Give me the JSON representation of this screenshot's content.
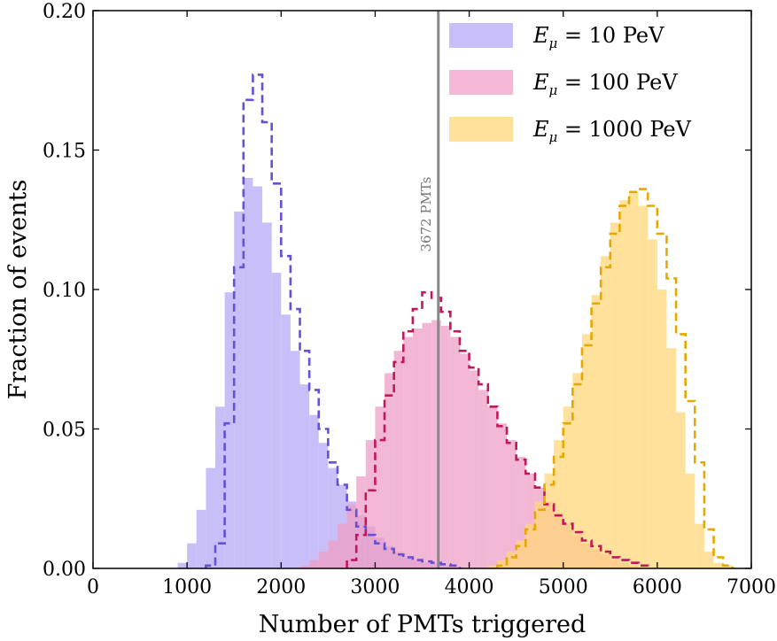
{
  "chart_data": {
    "type": "histogram",
    "xlabel": "Number of PMTs triggered",
    "ylabel": "Fraction of events",
    "xlim": [
      0,
      7000
    ],
    "ylim": [
      0,
      0.2
    ],
    "xticks": [
      "0",
      "1000",
      "2000",
      "3000",
      "4000",
      "5000",
      "6000",
      "7000"
    ],
    "yticks": [
      "0.00",
      "0.05",
      "0.10",
      "0.15",
      "0.20"
    ],
    "bin_width": 100,
    "legend_position": "top-right",
    "reference_line": {
      "x": 3672,
      "label": "3672 PMTs",
      "color": "#888888"
    },
    "series": [
      {
        "name": "E_μ = 10 PeV",
        "legend_parts": [
          "E",
          "μ",
          " = 10 PeV"
        ],
        "fill_color": "#b7a9f5",
        "line_color": "#6a4fd6",
        "filled": {
          "start": 900,
          "values": [
            0.002,
            0.009,
            0.021,
            0.036,
            0.058,
            0.099,
            0.128,
            0.14,
            0.137,
            0.124,
            0.106,
            0.091,
            0.078,
            0.066,
            0.055,
            0.045,
            0.036,
            0.03,
            0.024,
            0.019,
            0.015,
            0.011,
            0.008,
            0.006,
            0.004,
            0.003,
            0.002,
            0.0015,
            0.001,
            0.0005
          ]
        },
        "dashed": {
          "start": 1200,
          "values": [
            0.001,
            0.009,
            0.052,
            0.108,
            0.168,
            0.177,
            0.16,
            0.138,
            0.112,
            0.093,
            0.078,
            0.064,
            0.05,
            0.038,
            0.03,
            0.021,
            0.015,
            0.012,
            0.009,
            0.007,
            0.005,
            0.004,
            0.003,
            0.0025,
            0.002,
            0.0015,
            0.001
          ]
        }
      },
      {
        "name": "E_μ = 100 PeV",
        "legend_parts": [
          "E",
          "μ",
          " = 100 PeV"
        ],
        "fill_color": "#ee9fc6",
        "line_color": "#c2185b",
        "filled": {
          "start": 2200,
          "values": [
            0.001,
            0.003,
            0.006,
            0.01,
            0.016,
            0.023,
            0.033,
            0.046,
            0.058,
            0.07,
            0.078,
            0.083,
            0.086,
            0.088,
            0.089,
            0.087,
            0.083,
            0.077,
            0.071,
            0.064,
            0.058,
            0.052,
            0.046,
            0.04,
            0.034,
            0.029,
            0.024,
            0.02,
            0.016,
            0.012,
            0.009,
            0.007,
            0.005,
            0.003,
            0.002,
            0.001
          ]
        },
        "dashed": {
          "start": 2700,
          "values": [
            0.003,
            0.012,
            0.028,
            0.046,
            0.062,
            0.074,
            0.085,
            0.093,
            0.099,
            0.097,
            0.092,
            0.085,
            0.078,
            0.072,
            0.066,
            0.058,
            0.051,
            0.045,
            0.039,
            0.034,
            0.029,
            0.023,
            0.019,
            0.016,
            0.013,
            0.01,
            0.008,
            0.006,
            0.004,
            0.003,
            0.002,
            0.001
          ]
        }
      },
      {
        "name": "E_μ = 1000 PeV",
        "legend_parts": [
          "E",
          "μ",
          " = 1000 PeV"
        ],
        "fill_color": "#ffd77a",
        "line_color": "#e6a800",
        "filled": {
          "start": 4200,
          "values": [
            0.001,
            0.003,
            0.006,
            0.01,
            0.016,
            0.024,
            0.034,
            0.046,
            0.058,
            0.07,
            0.084,
            0.098,
            0.112,
            0.124,
            0.132,
            0.135,
            0.13,
            0.118,
            0.1,
            0.079,
            0.056,
            0.034,
            0.016,
            0.006,
            0.002,
            0.001
          ]
        },
        "dashed": {
          "start": 4300,
          "values": [
            0.001,
            0.004,
            0.008,
            0.014,
            0.021,
            0.03,
            0.04,
            0.052,
            0.066,
            0.08,
            0.095,
            0.108,
            0.12,
            0.13,
            0.135,
            0.136,
            0.13,
            0.12,
            0.104,
            0.084,
            0.06,
            0.038,
            0.014,
            0.004,
            0.001
          ]
        }
      }
    ]
  }
}
